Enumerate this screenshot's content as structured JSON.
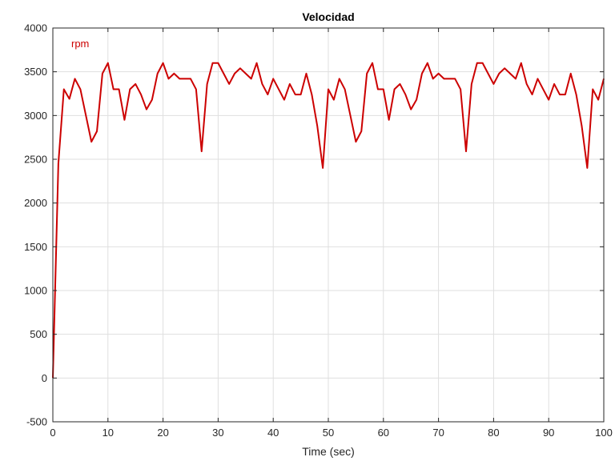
{
  "chart_data": {
    "type": "line",
    "title": "Velocidad",
    "xlabel": "Time (sec)",
    "ylabel": "",
    "xlim": [
      0,
      100
    ],
    "ylim": [
      -500,
      4000
    ],
    "xticks": [
      0,
      10,
      20,
      30,
      40,
      50,
      60,
      70,
      80,
      90,
      100
    ],
    "yticks": [
      -500,
      0,
      500,
      1000,
      1500,
      2000,
      2500,
      3000,
      3500,
      4000
    ],
    "grid": true,
    "legend_position": "top-left",
    "series": [
      {
        "name": "rpm",
        "color": "#cc0000",
        "x": [
          0,
          1,
          2,
          3,
          4,
          5,
          6,
          7,
          8,
          9,
          10,
          11,
          12,
          13,
          14,
          15,
          16,
          17,
          18,
          19,
          20,
          21,
          22,
          23,
          24,
          25,
          26,
          27,
          28,
          29,
          30,
          31,
          32,
          33,
          34,
          35,
          36,
          37,
          38,
          39,
          40,
          41,
          42,
          43,
          44,
          45,
          46,
          47,
          48,
          49,
          50,
          51,
          52,
          53,
          54,
          55,
          56,
          57,
          58,
          59,
          60,
          61,
          62,
          63,
          64,
          65,
          66,
          67,
          68,
          69,
          70,
          71,
          72,
          73,
          74,
          75,
          76,
          77,
          78,
          79,
          80,
          81,
          82,
          83,
          84,
          85,
          86,
          87,
          88,
          89,
          90,
          91,
          92,
          93,
          94,
          95,
          96,
          97,
          98,
          99,
          100
        ],
        "y": [
          0,
          2450,
          3300,
          3190,
          3420,
          3300,
          3000,
          2700,
          2820,
          3480,
          3600,
          3300,
          3300,
          2950,
          3300,
          3360,
          3240,
          3070,
          3180,
          3480,
          3600,
          3420,
          3480,
          3420,
          3420,
          3420,
          3300,
          2590,
          3360,
          3600,
          3600,
          3480,
          3360,
          3480,
          3540,
          3480,
          3420,
          3600,
          3360,
          3240,
          3420,
          3300,
          3180,
          3360,
          3240,
          3240,
          3480,
          3240,
          2880,
          2400,
          3300,
          3180,
          3420,
          3300,
          3000,
          2700,
          2820,
          3480,
          3600,
          3300,
          3300,
          2950,
          3300,
          3360,
          3240,
          3070,
          3180,
          3480,
          3600,
          3420,
          3480,
          3420,
          3420,
          3420,
          3300,
          2590,
          3360,
          3600,
          3600,
          3480,
          3360,
          3480,
          3540,
          3480,
          3420,
          3600,
          3360,
          3240,
          3420,
          3300,
          3180,
          3360,
          3240,
          3240,
          3480,
          3240,
          2880,
          2400,
          3300,
          3180,
          3420
        ]
      }
    ]
  }
}
